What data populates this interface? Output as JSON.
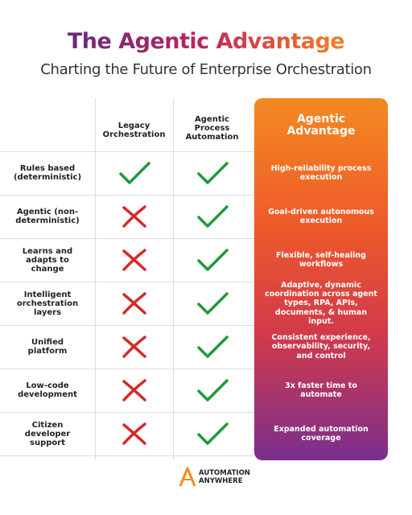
{
  "header": {
    "title": "The Agentic Advantage",
    "subtitle": "Charting the Future of Enterprise Orchestration"
  },
  "table": {
    "columns": [
      "Legacy Orchestration",
      "Agentic Process Automation",
      "Agentic Advantage"
    ],
    "rows": [
      {
        "label": "Rules based (deterministic)",
        "legacy": true,
        "apa": true,
        "advantage": "High-reliability process execution"
      },
      {
        "label": "Agentic (non-deterministic)",
        "legacy": false,
        "apa": true,
        "advantage": "Goal-driven autonomous execution"
      },
      {
        "label": "Learns and adapts to change",
        "legacy": false,
        "apa": true,
        "advantage": "Flexible, self-healing workflows"
      },
      {
        "label": "Intelligent orchestration layers",
        "legacy": false,
        "apa": true,
        "advantage": "Adaptive, dynamic coordination across agent types, RPA, APIs, documents, & human input."
      },
      {
        "label": "Unified platform",
        "legacy": false,
        "apa": true,
        "advantage": "Consistent experience, observability, security, and control"
      },
      {
        "label": "Low-code development",
        "legacy": false,
        "apa": true,
        "advantage": "3x faster time to automate"
      },
      {
        "label": "Citizen developer support",
        "legacy": false,
        "apa": true,
        "advantage": "Expanded automation coverage"
      }
    ]
  },
  "footer": {
    "logo_line1": "AUTOMATION",
    "logo_line2": "ANYWHERE"
  }
}
